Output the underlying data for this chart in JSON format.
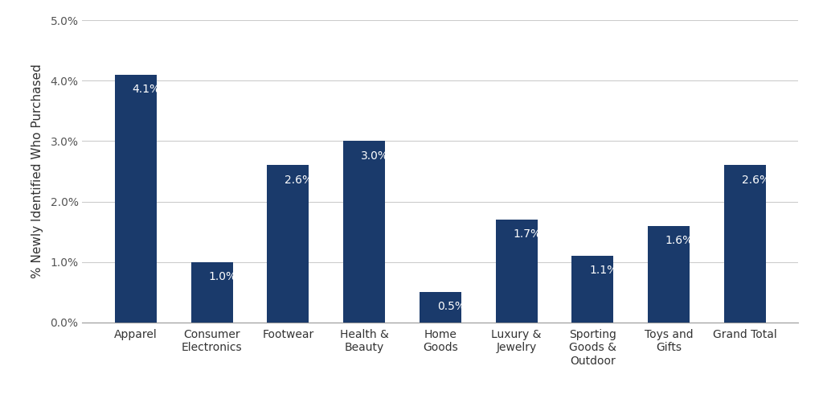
{
  "categories": [
    "Apparel",
    "Consumer\nElectronics",
    "Footwear",
    "Health &\nBeauty",
    "Home\nGoods",
    "Luxury &\nJewelry",
    "Sporting\nGoods &\nOutdoor",
    "Toys and\nGifts",
    "Grand Total"
  ],
  "values": [
    0.041,
    0.01,
    0.026,
    0.03,
    0.005,
    0.017,
    0.011,
    0.016,
    0.026
  ],
  "labels": [
    "4.1%",
    "1.0%",
    "2.6%",
    "3.0%",
    "0.5%",
    "1.7%",
    "1.1%",
    "1.6%",
    "2.6%"
  ],
  "bar_color": "#1a3a6b",
  "label_color": "#ffffff",
  "background_color": "#ffffff",
  "ylabel": "% Newly Identified Who Purchased",
  "ylim": [
    0,
    0.05
  ],
  "yticks": [
    0.0,
    0.01,
    0.02,
    0.03,
    0.04,
    0.05
  ],
  "ytick_labels": [
    "0.0%",
    "1.0%",
    "2.0%",
    "3.0%",
    "4.0%",
    "5.0%"
  ],
  "grid_color": "#cccccc",
  "label_fontsize": 10,
  "tick_fontsize": 10,
  "ylabel_fontsize": 11
}
